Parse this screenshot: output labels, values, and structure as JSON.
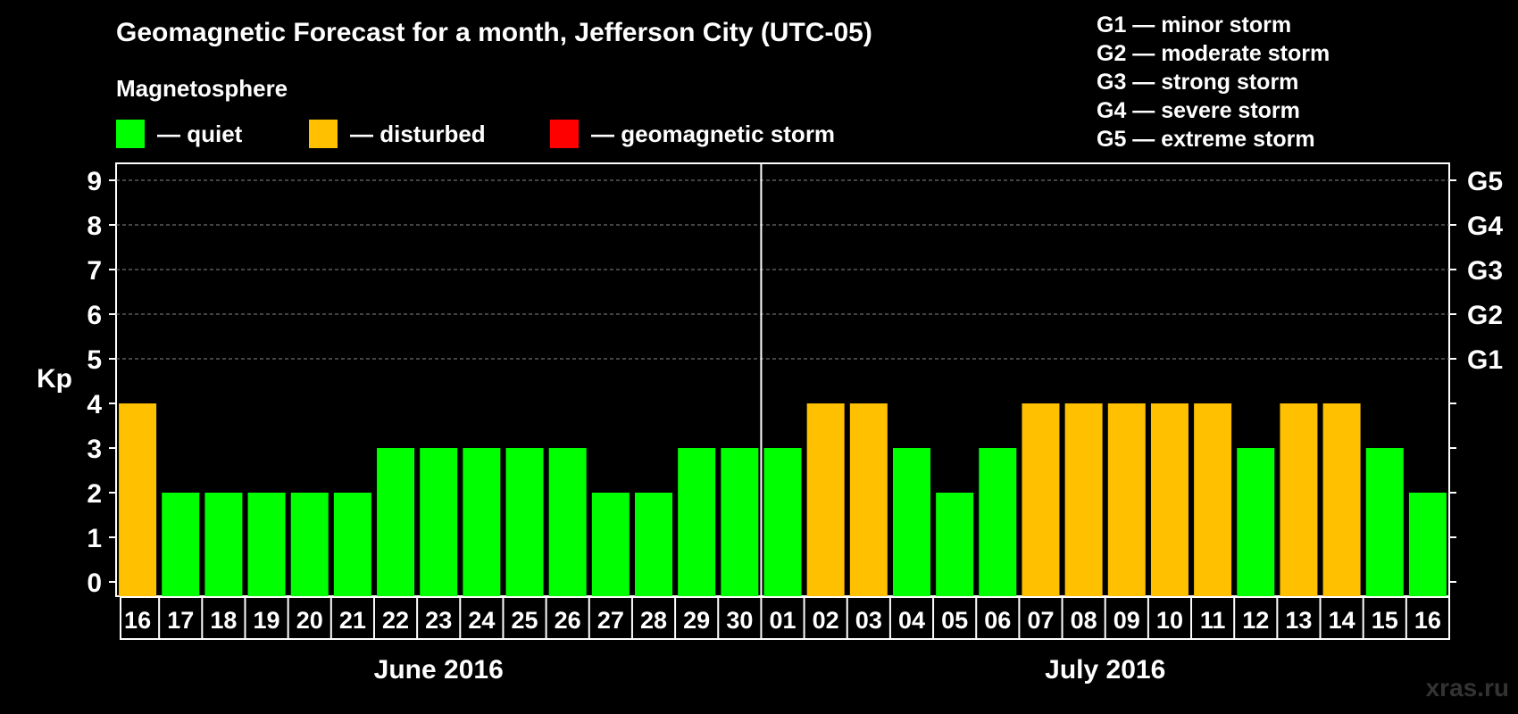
{
  "title": "Geomagnetic Forecast for a month, Jefferson City (UTC-05)",
  "subtitle": "Magnetosphere",
  "legend": [
    {
      "label": "— quiet",
      "color": "#00ff00"
    },
    {
      "label": "— disturbed",
      "color": "#ffc000"
    },
    {
      "label": "— geomagnetic storm",
      "color": "#ff0000"
    }
  ],
  "g_levels": [
    "G1 — minor storm",
    "G2 — moderate storm",
    "G3 — strong storm",
    "G4 — severe storm",
    "G5 — extreme storm"
  ],
  "watermark": "xras.ru",
  "chart_data": {
    "type": "bar",
    "ylabel": "Kp",
    "ylim": [
      0,
      9
    ],
    "yticks": [
      0,
      1,
      2,
      3,
      4,
      5,
      6,
      7,
      8,
      9
    ],
    "right_axis_labels": [
      {
        "kp": 5,
        "label": "G1"
      },
      {
        "kp": 6,
        "label": "G2"
      },
      {
        "kp": 7,
        "label": "G3"
      },
      {
        "kp": 8,
        "label": "G4"
      },
      {
        "kp": 9,
        "label": "G5"
      }
    ],
    "categories": [
      "16",
      "17",
      "18",
      "19",
      "20",
      "21",
      "22",
      "23",
      "24",
      "25",
      "26",
      "27",
      "28",
      "29",
      "30",
      "01",
      "02",
      "03",
      "04",
      "05",
      "06",
      "07",
      "08",
      "09",
      "10",
      "11",
      "12",
      "13",
      "14",
      "15",
      "16"
    ],
    "values": [
      4,
      2,
      2,
      2,
      2,
      2,
      3,
      3,
      3,
      3,
      3,
      2,
      2,
      3,
      3,
      3,
      4,
      4,
      3,
      2,
      3,
      4,
      4,
      4,
      4,
      4,
      3,
      4,
      4,
      3,
      2
    ],
    "months": [
      {
        "label": "June 2016",
        "start_index": 0,
        "end_index": 14
      },
      {
        "label": "July 2016",
        "start_index": 15,
        "end_index": 30
      }
    ],
    "colors": {
      "quiet": "#00ff00",
      "disturbed": "#ffc000",
      "storm": "#ff0000"
    },
    "color_rule": "Kp < 4 quiet; Kp = 4 disturbed; Kp >= 5 storm",
    "grid": "dashed horizontal at Kp 5-9"
  }
}
